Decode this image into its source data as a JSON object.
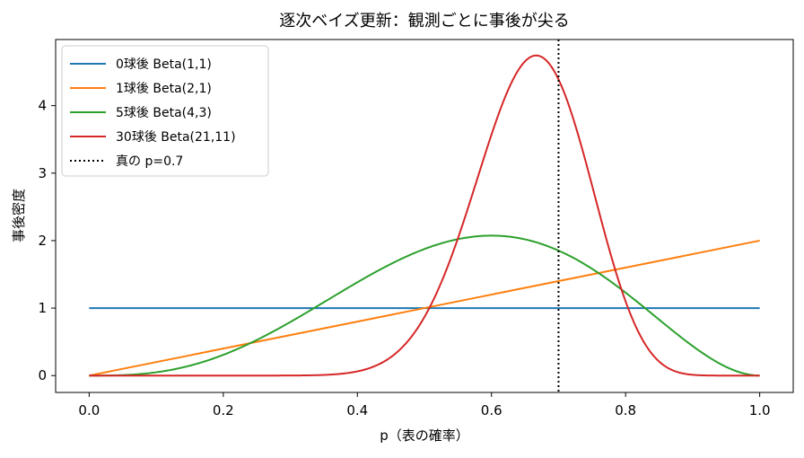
{
  "chart_data": {
    "type": "line",
    "title": "逐次ベイズ更新：観測ごとに事後が尖る",
    "xlabel": "p（表の確率）",
    "ylabel": "事後密度",
    "xlim": [
      -0.05,
      1.05
    ],
    "ylim": [
      -0.25,
      4.98
    ],
    "xticks": [
      0.0,
      0.2,
      0.4,
      0.6,
      0.8,
      1.0
    ],
    "xtick_labels": [
      "0.0",
      "0.2",
      "0.4",
      "0.6",
      "0.8",
      "1.0"
    ],
    "yticks": [
      0,
      1,
      2,
      3,
      4
    ],
    "ytick_labels": [
      "0",
      "1",
      "2",
      "3",
      "4"
    ],
    "grid": false,
    "legend_position": "top-left",
    "series": [
      {
        "name": "0球後 Beta(1,1)",
        "color": "#1f77b4",
        "alpha": 1,
        "beta": 1
      },
      {
        "name": "1球後 Beta(2,1)",
        "color": "#ff7f0e",
        "alpha": 2,
        "beta": 1
      },
      {
        "name": "5球後 Beta(4,3)",
        "color": "#2ca02c",
        "alpha": 4,
        "beta": 3
      },
      {
        "name": "30球後 Beta(21,11)",
        "color": "#d62728",
        "alpha": 21,
        "beta": 11
      }
    ],
    "reference_line": {
      "name": "真の p=0.7",
      "x": 0.7,
      "style": "dotted",
      "color": "#000000"
    }
  }
}
